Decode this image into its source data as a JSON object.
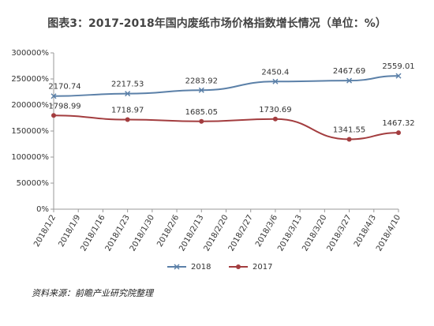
{
  "chart_data": {
    "type": "line",
    "title": "图表3：2017-2018年国内废纸市场价格指数增长情况（单位：%）",
    "categories": [
      "2018/1/2",
      "2018/1/9",
      "2018/1/16",
      "2018/1/23",
      "2018/1/30",
      "2018/2/6",
      "2018/2/13",
      "2018/2/20",
      "2018/2/27",
      "2018/3/6",
      "2018/3/13",
      "2018/3/20",
      "2018/3/27",
      "2018/4/3",
      "2018/4/10"
    ],
    "series": [
      {
        "name": "2018",
        "color": "#5b80a8",
        "marker": "x",
        "values": [
          2170.74,
          null,
          null,
          2217.53,
          null,
          null,
          2283.92,
          null,
          null,
          2450.4,
          null,
          null,
          2467.69,
          null,
          2559.01
        ]
      },
      {
        "name": "2017",
        "color": "#a33d3f",
        "marker": "circle",
        "values": [
          1798.99,
          null,
          null,
          1718.97,
          null,
          null,
          1685.05,
          null,
          null,
          1730.69,
          null,
          null,
          1341.55,
          null,
          1467.32
        ]
      }
    ],
    "ylim": [
      0,
      3000
    ],
    "yticks": [
      {
        "value": 0,
        "label": "0%"
      },
      {
        "value": 500,
        "label": "50000%"
      },
      {
        "value": 1000,
        "label": "100000%"
      },
      {
        "value": 1500,
        "label": "150000%"
      },
      {
        "value": 2000,
        "label": "200000%"
      },
      {
        "value": 2500,
        "label": "250000%"
      },
      {
        "value": 3000,
        "label": "300000%"
      }
    ],
    "legend": "bottom",
    "source": "资料来源：前瞻产业研究院整理"
  }
}
